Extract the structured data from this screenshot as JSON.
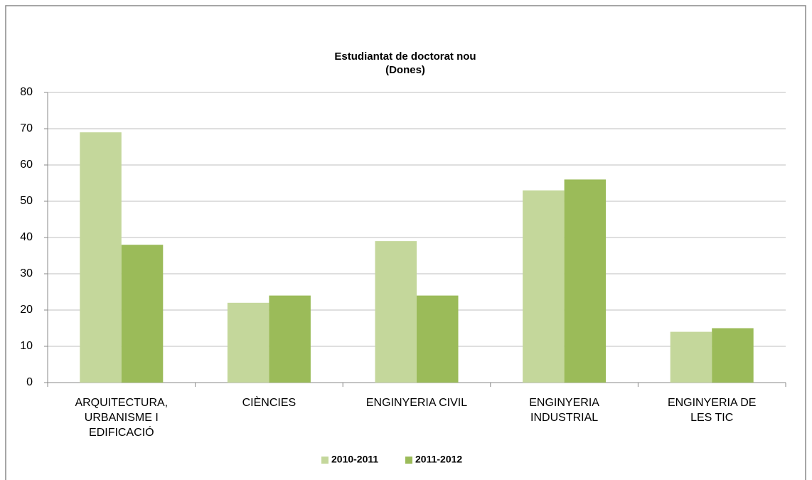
{
  "chart_data": {
    "type": "bar",
    "title": "Estudiantat de doctorat nou",
    "subtitle": "(Dones)",
    "categories": [
      "ARQUITECTURA, URBANISME I EDIFICACIÓ",
      "CIÈNCIES",
      "ENGINYERIA CIVIL",
      "ENGINYERIA INDUSTRIAL",
      "ENGINYERIA DE LES TIC"
    ],
    "series": [
      {
        "name": "2010-2011",
        "color": "#c4d79b",
        "values": [
          69,
          22,
          39,
          53,
          14
        ]
      },
      {
        "name": "2011-2012",
        "color": "#9bbb59",
        "values": [
          38,
          24,
          24,
          56,
          15
        ]
      }
    ],
    "ylim": [
      0,
      80
    ],
    "yticks": [
      0,
      10,
      20,
      30,
      40,
      50,
      60,
      70,
      80
    ],
    "grid": true,
    "legend": "bottom"
  }
}
